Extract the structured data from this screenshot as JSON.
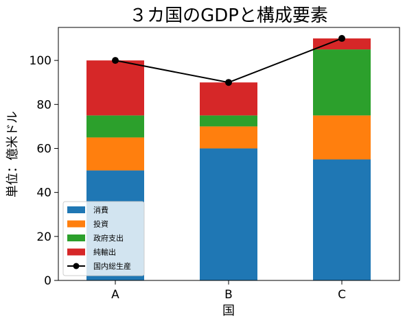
{
  "chart_data": {
    "type": "bar",
    "stacked": true,
    "title": "３カ国のGDPと構成要素",
    "xlabel": "国",
    "ylabel": "単位：億米ドル",
    "categories": [
      "A",
      "B",
      "C"
    ],
    "ylim": [
      0,
      115
    ],
    "yticks": [
      0,
      20,
      40,
      60,
      80,
      100
    ],
    "grid": false,
    "legend_position": "lower-left",
    "series": [
      {
        "name": "消費",
        "values": [
          50,
          60,
          55
        ],
        "color": "#1f77b4"
      },
      {
        "name": "投資",
        "values": [
          15,
          10,
          20
        ],
        "color": "#ff7f0e"
      },
      {
        "name": "政府支出",
        "values": [
          10,
          5,
          30
        ],
        "color": "#2ca02c"
      },
      {
        "name": "純輸出",
        "values": [
          25,
          15,
          5
        ],
        "color": "#d62728"
      }
    ],
    "line_series": {
      "name": "国内総生産",
      "values": [
        100,
        90,
        110
      ],
      "color": "#000000",
      "marker": "circle"
    }
  }
}
